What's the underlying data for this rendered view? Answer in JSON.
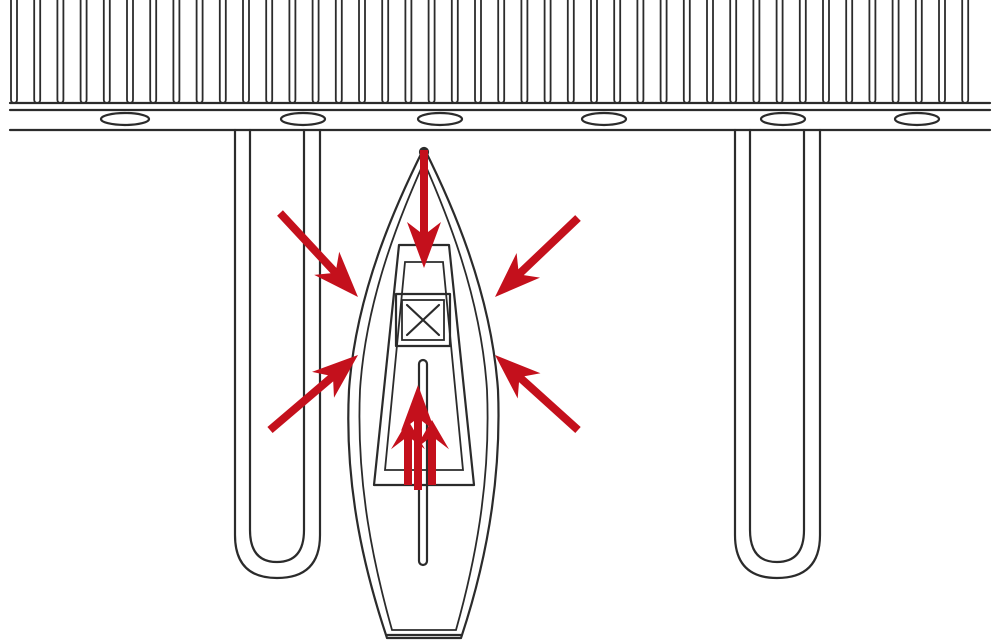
{
  "diagram": {
    "colors": {
      "background": "#ffffff",
      "line": "#2b2b2b",
      "arrow": "#c4101c"
    },
    "elements": {
      "dock": "dock",
      "finger_piers": 2,
      "boat": "sailboat",
      "force_arrows": 8
    }
  }
}
